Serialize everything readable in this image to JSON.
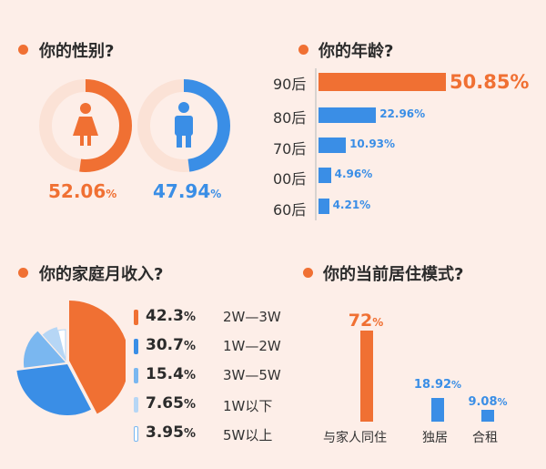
{
  "colors": {
    "orange": "#f07033",
    "blue": "#3a8ee6",
    "lightblue": "#7ab7f0",
    "paleblue": "#b6d6f5",
    "ring_bg": "#fbe2d6"
  },
  "gender": {
    "title": "你的性别?",
    "female": {
      "value": 52.06,
      "num": "52.06",
      "unit": "%"
    },
    "male": {
      "value": 47.94,
      "num": "47.94",
      "unit": "%"
    }
  },
  "age": {
    "title": "你的年龄?",
    "items": [
      {
        "label": "90后",
        "value": 50.85,
        "text": "50.85%"
      },
      {
        "label": "80后",
        "value": 22.96,
        "text": "22.96%"
      },
      {
        "label": "70后",
        "value": 10.93,
        "text": "10.93%"
      },
      {
        "label": "00后",
        "value": 4.96,
        "text": "4.96%"
      },
      {
        "label": "60后",
        "value": 4.21,
        "text": "4.21%"
      }
    ]
  },
  "income": {
    "title": "你的家庭月收入?",
    "items": [
      {
        "num": "42.3",
        "unit": "%",
        "value": 42.3,
        "label": "2W—3W"
      },
      {
        "num": "30.7",
        "unit": "%",
        "value": 30.7,
        "label": "1W—2W"
      },
      {
        "num": "15.4",
        "unit": "%",
        "value": 15.4,
        "label": "3W—5W"
      },
      {
        "num": "7.65",
        "unit": "%",
        "value": 7.65,
        "label": "1W以下"
      },
      {
        "num": "3.95",
        "unit": "%",
        "value": 3.95,
        "label": "5W以上"
      }
    ]
  },
  "living": {
    "title": "你的当前居住模式?",
    "items": [
      {
        "label": "与家人同住",
        "value": 72,
        "num": "72",
        "unit": "%"
      },
      {
        "label": "独居",
        "value": 18.92,
        "num": "18.92",
        "unit": "%"
      },
      {
        "label": "合租",
        "value": 9.08,
        "num": "9.08",
        "unit": "%"
      }
    ]
  },
  "chart_data": [
    {
      "type": "pie",
      "title": "你的性别?",
      "categories": [
        "female",
        "male"
      ],
      "values": [
        52.06,
        47.94
      ]
    },
    {
      "type": "bar",
      "orientation": "horizontal",
      "title": "你的年龄?",
      "categories": [
        "90后",
        "80后",
        "70后",
        "00后",
        "60后"
      ],
      "values": [
        50.85,
        22.96,
        10.93,
        4.96,
        4.21
      ]
    },
    {
      "type": "pie",
      "title": "你的家庭月收入?",
      "categories": [
        "2W—3W",
        "1W—2W",
        "3W—5W",
        "1W以下",
        "5W以上"
      ],
      "values": [
        42.3,
        30.7,
        15.4,
        7.65,
        3.95
      ]
    },
    {
      "type": "bar",
      "title": "你的当前居住模式?",
      "categories": [
        "与家人同住",
        "独居",
        "合租"
      ],
      "values": [
        72,
        18.92,
        9.08
      ]
    }
  ]
}
